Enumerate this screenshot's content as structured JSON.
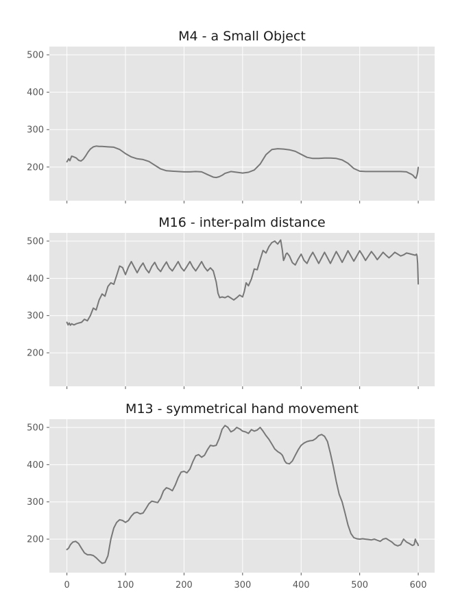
{
  "chart_data": [
    {
      "type": "line",
      "title": "M4 - a Small Object",
      "xlabel": "",
      "ylabel": "",
      "xlim": [
        -30,
        628
      ],
      "ylim": [
        110,
        522
      ],
      "x_ticks": [
        0,
        100,
        200,
        300,
        400,
        500,
        600
      ],
      "x_tick_labels_shown": false,
      "y_ticks": [
        200,
        300,
        400,
        500
      ],
      "grid": true,
      "series": [
        {
          "color": "#777777",
          "x": [
            0,
            3,
            5,
            8,
            12,
            16,
            20,
            24,
            28,
            32,
            36,
            40,
            45,
            50,
            55,
            60,
            70,
            80,
            90,
            100,
            110,
            120,
            130,
            140,
            150,
            160,
            170,
            180,
            190,
            200,
            210,
            220,
            230,
            240,
            250,
            255,
            260,
            265,
            270,
            280,
            290,
            300,
            310,
            320,
            330,
            340,
            350,
            360,
            370,
            380,
            390,
            400,
            410,
            420,
            430,
            440,
            450,
            460,
            470,
            480,
            490,
            500,
            510,
            520,
            530,
            540,
            550,
            560,
            570,
            580,
            585,
            588,
            591,
            594,
            596,
            598,
            599,
            600
          ],
          "y": [
            214,
            222,
            217,
            229,
            227,
            224,
            218,
            216,
            221,
            230,
            240,
            248,
            254,
            256,
            255,
            255,
            254,
            253,
            247,
            236,
            227,
            222,
            220,
            215,
            205,
            195,
            190,
            189,
            188,
            187,
            187,
            188,
            187,
            180,
            173,
            172,
            174,
            178,
            183,
            188,
            186,
            184,
            186,
            192,
            208,
            233,
            247,
            249,
            248,
            246,
            242,
            234,
            226,
            223,
            223,
            224,
            224,
            223,
            219,
            210,
            196,
            189,
            188,
            188,
            188,
            188,
            188,
            188,
            188,
            187,
            183,
            181,
            178,
            172,
            170,
            179,
            186,
            199
          ]
        }
      ]
    },
    {
      "type": "line",
      "title": "M16 - inter-palm distance",
      "xlabel": "",
      "ylabel": "",
      "xlim": [
        -30,
        628
      ],
      "ylim": [
        110,
        522
      ],
      "x_ticks": [
        0,
        100,
        200,
        300,
        400,
        500,
        600
      ],
      "x_tick_labels_shown": false,
      "y_ticks": [
        200,
        300,
        400,
        500
      ],
      "grid": true,
      "series": [
        {
          "color": "#777777",
          "x": [
            0,
            2,
            4,
            6,
            8,
            12,
            16,
            20,
            25,
            30,
            35,
            40,
            45,
            50,
            55,
            60,
            65,
            70,
            75,
            80,
            85,
            90,
            95,
            100,
            105,
            110,
            115,
            120,
            125,
            130,
            135,
            140,
            145,
            150,
            155,
            160,
            165,
            170,
            175,
            180,
            185,
            190,
            195,
            200,
            205,
            210,
            215,
            220,
            225,
            230,
            235,
            240,
            245,
            250,
            255,
            258,
            261,
            265,
            270,
            275,
            280,
            285,
            290,
            295,
            300,
            303,
            306,
            310,
            315,
            320,
            325,
            330,
            335,
            340,
            345,
            350,
            355,
            360,
            365,
            368,
            370,
            372,
            374,
            376,
            380,
            385,
            390,
            395,
            400,
            405,
            410,
            415,
            420,
            425,
            430,
            435,
            440,
            445,
            450,
            455,
            460,
            465,
            470,
            475,
            480,
            485,
            490,
            495,
            500,
            505,
            510,
            515,
            520,
            525,
            530,
            535,
            540,
            545,
            550,
            555,
            560,
            565,
            570,
            575,
            580,
            585,
            590,
            595,
            597,
            598,
            599,
            600
          ],
          "y": [
            282,
            275,
            280,
            274,
            278,
            275,
            278,
            280,
            282,
            290,
            286,
            300,
            320,
            315,
            342,
            358,
            352,
            378,
            388,
            384,
            408,
            433,
            429,
            410,
            430,
            445,
            430,
            415,
            430,
            441,
            425,
            415,
            432,
            443,
            427,
            418,
            432,
            444,
            428,
            420,
            432,
            445,
            429,
            420,
            432,
            445,
            430,
            420,
            432,
            445,
            430,
            420,
            428,
            420,
            390,
            360,
            348,
            350,
            348,
            352,
            347,
            342,
            348,
            355,
            350,
            365,
            388,
            380,
            398,
            425,
            423,
            450,
            475,
            468,
            485,
            496,
            500,
            492,
            503,
            475,
            448,
            455,
            465,
            468,
            460,
            442,
            436,
            452,
            465,
            448,
            440,
            457,
            470,
            455,
            440,
            455,
            470,
            455,
            440,
            456,
            472,
            458,
            443,
            458,
            474,
            460,
            446,
            460,
            474,
            462,
            448,
            460,
            472,
            462,
            450,
            460,
            470,
            462,
            455,
            462,
            470,
            465,
            460,
            463,
            468,
            466,
            464,
            462,
            465,
            460,
            440,
            385
          ]
        }
      ]
    },
    {
      "type": "line",
      "title": "M13 - symmetrical hand movement",
      "xlabel": "",
      "ylabel": "",
      "xlim": [
        -30,
        628
      ],
      "ylim": [
        110,
        522
      ],
      "x_ticks": [
        0,
        100,
        200,
        300,
        400,
        500,
        600
      ],
      "x_tick_labels_shown": true,
      "y_ticks": [
        200,
        300,
        400,
        500
      ],
      "grid": true,
      "series": [
        {
          "color": "#777777",
          "x": [
            0,
            3,
            6,
            10,
            15,
            20,
            25,
            30,
            35,
            40,
            45,
            50,
            55,
            60,
            65,
            70,
            75,
            80,
            85,
            90,
            95,
            100,
            105,
            110,
            115,
            120,
            125,
            130,
            135,
            140,
            145,
            150,
            155,
            160,
            165,
            170,
            175,
            180,
            185,
            190,
            195,
            200,
            205,
            210,
            215,
            220,
            225,
            230,
            235,
            240,
            245,
            250,
            255,
            260,
            265,
            270,
            275,
            280,
            285,
            290,
            295,
            300,
            305,
            310,
            315,
            320,
            325,
            330,
            335,
            340,
            345,
            350,
            355,
            360,
            365,
            368,
            370,
            372,
            375,
            380,
            385,
            390,
            395,
            400,
            405,
            410,
            415,
            420,
            425,
            430,
            435,
            440,
            445,
            450,
            455,
            460,
            465,
            470,
            475,
            480,
            485,
            490,
            495,
            500,
            505,
            510,
            515,
            520,
            525,
            530,
            535,
            540,
            545,
            550,
            555,
            560,
            565,
            570,
            575,
            580,
            585,
            590,
            593,
            595,
            597,
            599,
            600
          ],
          "y": [
            172,
            176,
            185,
            192,
            194,
            188,
            175,
            163,
            158,
            158,
            156,
            150,
            142,
            135,
            137,
            155,
            200,
            230,
            245,
            252,
            250,
            245,
            250,
            262,
            270,
            272,
            268,
            270,
            282,
            295,
            302,
            300,
            298,
            310,
            330,
            338,
            335,
            330,
            345,
            365,
            380,
            382,
            378,
            388,
            408,
            424,
            427,
            420,
            425,
            440,
            452,
            450,
            452,
            470,
            495,
            505,
            500,
            488,
            492,
            500,
            496,
            490,
            488,
            484,
            494,
            490,
            493,
            500,
            490,
            478,
            468,
            455,
            442,
            435,
            430,
            425,
            418,
            410,
            404,
            402,
            410,
            425,
            440,
            452,
            458,
            462,
            464,
            465,
            470,
            478,
            481,
            476,
            462,
            430,
            395,
            355,
            320,
            300,
            270,
            238,
            215,
            204,
            201,
            200,
            201,
            200,
            199,
            198,
            200,
            197,
            194,
            200,
            202,
            197,
            192,
            185,
            182,
            185,
            200,
            192,
            188,
            183,
            185,
            200,
            192,
            188,
            183
          ]
        }
      ]
    }
  ]
}
